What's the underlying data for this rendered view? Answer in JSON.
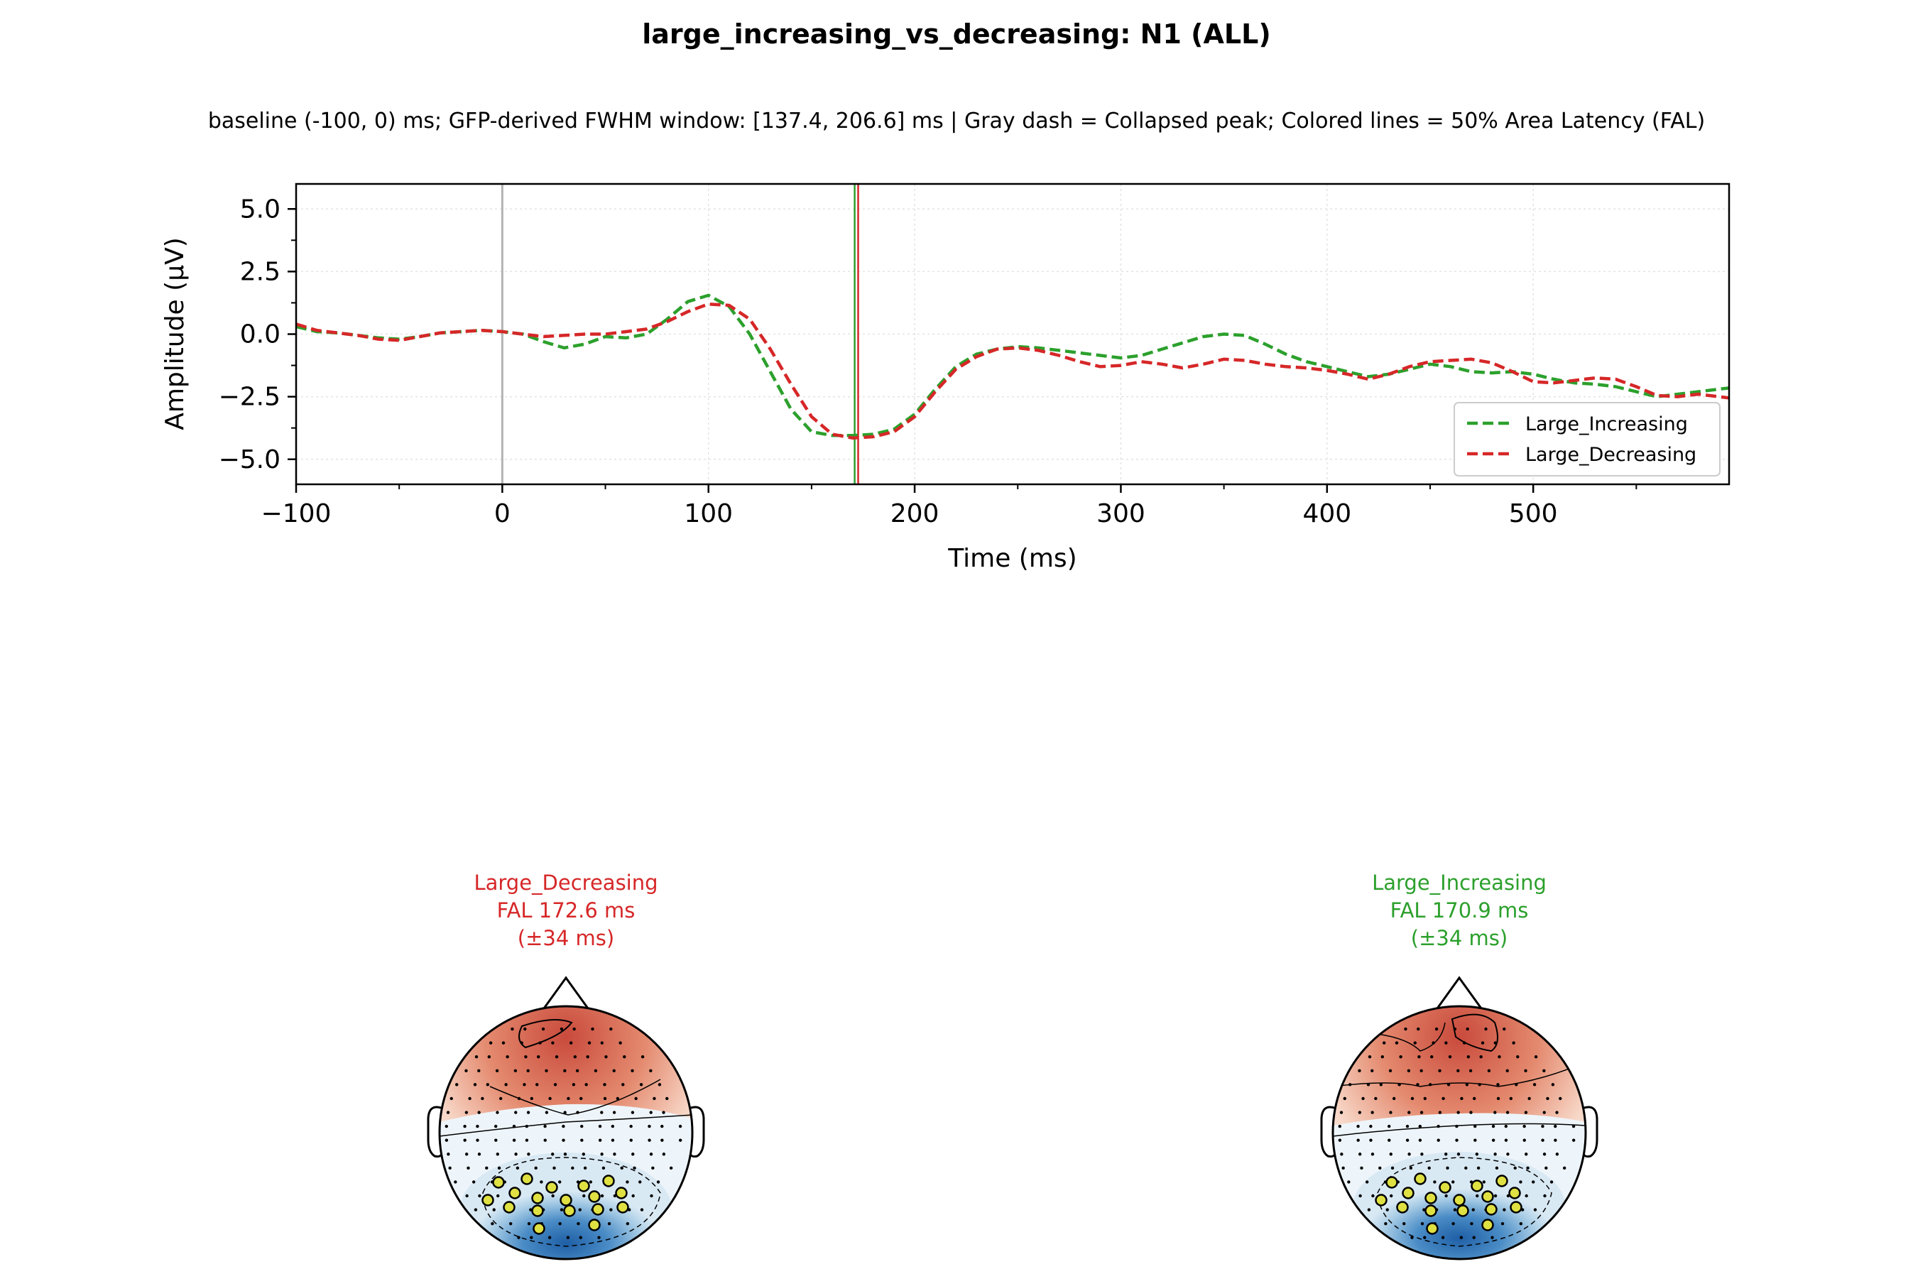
{
  "chart_data": [
    {
      "type": "line",
      "title": "large_increasing_vs_decreasing: N1 (ALL)",
      "subtitle": "baseline (-100, 0) ms; GFP-derived FWHM window: [137.4, 206.6] ms | Gray dash = Collapsed peak; Colored lines = 50% Area Latency (FAL)",
      "xlabel": "Time (ms)",
      "ylabel": "Amplitude (µV)",
      "xlim": [
        -100,
        595
      ],
      "ylim": [
        -6,
        6
      ],
      "xticks": [
        -100,
        0,
        100,
        200,
        300,
        400,
        500
      ],
      "xtick_labels": [
        "−100",
        "0",
        "100",
        "200",
        "300",
        "400",
        "500"
      ],
      "yticks": [
        5.0,
        2.5,
        0.0,
        -2.5,
        -5.0
      ],
      "ytick_labels": [
        "5.0",
        "2.5",
        "0.0",
        "−2.5",
        "−5.0"
      ],
      "grid": true,
      "legend_position": "lower-right",
      "vlines": [
        {
          "x": 0,
          "color": "#b3b3b3"
        },
        {
          "x": 170.9,
          "color": "#2ca02c"
        },
        {
          "x": 172.6,
          "color": "#d62728"
        }
      ],
      "series": [
        {
          "name": "Large_Increasing",
          "color": "#2ca02c",
          "x": [
            -100,
            -90,
            -80,
            -70,
            -60,
            -50,
            -40,
            -30,
            -20,
            -10,
            0,
            10,
            20,
            30,
            40,
            50,
            60,
            70,
            80,
            90,
            100,
            110,
            120,
            130,
            140,
            150,
            160,
            170,
            180,
            190,
            200,
            210,
            220,
            230,
            240,
            250,
            260,
            270,
            280,
            290,
            300,
            310,
            320,
            330,
            340,
            350,
            360,
            370,
            380,
            390,
            400,
            410,
            420,
            430,
            440,
            450,
            460,
            470,
            480,
            490,
            500,
            510,
            520,
            530,
            540,
            550,
            560,
            570,
            580,
            590,
            595
          ],
          "y": [
            0.3,
            0.1,
            0.05,
            -0.05,
            -0.15,
            -0.2,
            -0.1,
            0.05,
            0.1,
            0.15,
            0.1,
            0.0,
            -0.3,
            -0.55,
            -0.4,
            -0.1,
            -0.15,
            0.0,
            0.6,
            1.3,
            1.55,
            1.1,
            0.0,
            -1.5,
            -3.0,
            -3.9,
            -4.05,
            -4.05,
            -4.0,
            -3.8,
            -3.2,
            -2.2,
            -1.3,
            -0.8,
            -0.6,
            -0.5,
            -0.55,
            -0.65,
            -0.75,
            -0.85,
            -0.95,
            -0.85,
            -0.6,
            -0.35,
            -0.1,
            0.0,
            -0.05,
            -0.4,
            -0.8,
            -1.1,
            -1.3,
            -1.5,
            -1.7,
            -1.6,
            -1.4,
            -1.2,
            -1.3,
            -1.5,
            -1.55,
            -1.5,
            -1.6,
            -1.8,
            -1.95,
            -2.0,
            -2.1,
            -2.3,
            -2.5,
            -2.4,
            -2.3,
            -2.2,
            -2.15
          ]
        },
        {
          "name": "Large_Decreasing",
          "color": "#d62728",
          "x": [
            -100,
            -90,
            -80,
            -70,
            -60,
            -50,
            -40,
            -30,
            -20,
            -10,
            0,
            10,
            20,
            30,
            40,
            50,
            60,
            70,
            80,
            90,
            100,
            110,
            120,
            130,
            140,
            150,
            160,
            170,
            180,
            190,
            200,
            210,
            220,
            230,
            240,
            250,
            260,
            270,
            280,
            290,
            300,
            310,
            320,
            330,
            340,
            350,
            360,
            370,
            380,
            390,
            400,
            410,
            420,
            430,
            440,
            450,
            460,
            470,
            480,
            490,
            500,
            510,
            520,
            530,
            540,
            550,
            560,
            570,
            580,
            590,
            595
          ],
          "y": [
            0.4,
            0.15,
            0.05,
            -0.05,
            -0.2,
            -0.25,
            -0.1,
            0.05,
            0.1,
            0.15,
            0.1,
            0.0,
            -0.1,
            -0.05,
            0.0,
            0.0,
            0.1,
            0.2,
            0.5,
            0.9,
            1.2,
            1.15,
            0.6,
            -0.6,
            -2.0,
            -3.3,
            -4.0,
            -4.15,
            -4.1,
            -3.9,
            -3.3,
            -2.3,
            -1.4,
            -0.9,
            -0.6,
            -0.55,
            -0.65,
            -0.85,
            -1.1,
            -1.3,
            -1.25,
            -1.1,
            -1.2,
            -1.35,
            -1.2,
            -1.0,
            -1.05,
            -1.2,
            -1.3,
            -1.35,
            -1.45,
            -1.6,
            -1.8,
            -1.6,
            -1.3,
            -1.1,
            -1.05,
            -1.0,
            -1.15,
            -1.5,
            -1.9,
            -1.95,
            -1.85,
            -1.75,
            -1.8,
            -2.1,
            -2.45,
            -2.5,
            -2.4,
            -2.5,
            -2.55
          ]
        }
      ]
    },
    {
      "type": "heatmap",
      "panel": "topomap",
      "title_lines": [
        "Large_Decreasing",
        "FAL 172.6 ms",
        "(±34 ms)"
      ],
      "color": "#d62728",
      "colormap": "RdBu_r"
    },
    {
      "type": "heatmap",
      "panel": "topomap",
      "title_lines": [
        "Large_Increasing",
        "FAL 170.9 ms",
        "(±34 ms)"
      ],
      "color": "#2ca02c",
      "colormap": "RdBu_r"
    }
  ]
}
